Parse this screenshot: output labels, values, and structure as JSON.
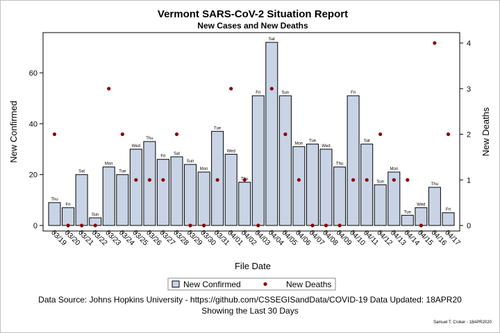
{
  "chart_data": {
    "type": "bar",
    "title": "Vermont SARS-CoV-2 Situation Report",
    "subtitle": "New Cases and New Deaths",
    "xlabel": "File Date",
    "ylabel": "New Confirmed",
    "y2label": "New Deaths",
    "ylim": [
      0,
      75
    ],
    "y2lim": [
      0,
      4.17
    ],
    "yticks": [
      0,
      20,
      40,
      60
    ],
    "y2ticks": [
      0,
      1,
      2,
      3,
      4
    ],
    "grid": false,
    "legend_position": "bottom",
    "categories": [
      "03/19",
      "03/20",
      "03/21",
      "03/22",
      "03/23",
      "03/24",
      "03/25",
      "03/26",
      "03/27",
      "03/28",
      "03/29",
      "03/30",
      "03/31",
      "04/01",
      "04/02",
      "04/03",
      "04/04",
      "04/05",
      "04/06",
      "04/07",
      "04/08",
      "04/09",
      "04/10",
      "04/11",
      "04/12",
      "04/13",
      "04/14",
      "04/15",
      "04/16",
      "04/17"
    ],
    "weekdays": [
      "Thu",
      "Fri",
      "Sat",
      "Sun",
      "Mon",
      "Tue",
      "Wed",
      "Thu",
      "Fri",
      "Sat",
      "Sun",
      "Mon",
      "Tue",
      "Wed",
      "Thu",
      "Fri",
      "Sat",
      "Sun",
      "Mon",
      "Tue",
      "Wed",
      "Thu",
      "Fri",
      "Sat",
      "Sun",
      "Mon",
      "Tue",
      "Wed",
      "Thu",
      "Fri"
    ],
    "series": [
      {
        "name": "New Confirmed",
        "type": "bar",
        "axis": "left",
        "color": "#c8d4e6",
        "values": [
          9,
          7,
          20,
          3,
          23,
          20,
          30,
          33,
          26,
          27,
          24,
          21,
          37,
          28,
          17,
          51,
          72,
          51,
          31,
          32,
          30,
          23,
          51,
          32,
          16,
          21,
          4,
          7,
          15,
          5
        ]
      },
      {
        "name": "New Deaths",
        "type": "scatter",
        "axis": "right",
        "color": "#8b0000",
        "values": [
          2,
          0,
          0,
          0,
          3,
          2,
          1,
          1,
          1,
          2,
          0,
          0,
          1,
          3,
          1,
          0,
          3,
          2,
          1,
          0,
          0,
          0,
          1,
          1,
          2,
          1,
          1,
          0,
          4,
          2
        ]
      }
    ]
  },
  "footer": {
    "source": "Data Source: Johns Hopkins University - https://github.com/CSSEGISandData/COVID-19 Data Updated: 18APR20",
    "note": "Showing the Last 30 Days",
    "signature": "Samuel T. Croker - 18APR2020"
  }
}
